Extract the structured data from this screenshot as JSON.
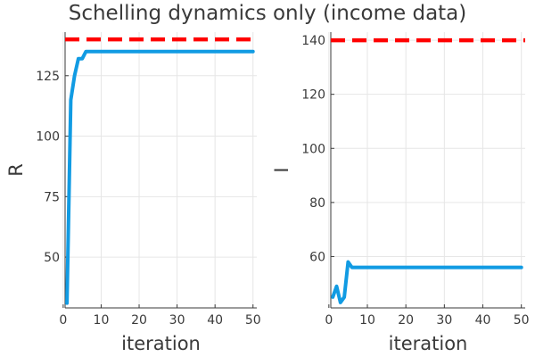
{
  "figure": {
    "title": "Schelling dynamics only (income data)"
  },
  "colors": {
    "series": "#119be3",
    "reference": "#ff0000",
    "axis": "#3a3a3a",
    "grid": "#e6e6e6"
  },
  "chart_data": [
    {
      "type": "line",
      "xlabel": "iteration",
      "ylabel": "R",
      "xlim": [
        0.5,
        51
      ],
      "ylim": [
        29,
        143
      ],
      "xticks": [
        0,
        10,
        20,
        30,
        40,
        50
      ],
      "yticks": [
        50,
        75,
        100,
        125
      ],
      "grid": true,
      "legend": "none",
      "series": [
        {
          "x": [
            1,
            2,
            3,
            4,
            5,
            6,
            7,
            8,
            9,
            10,
            15,
            20,
            25,
            30,
            35,
            40,
            45,
            50
          ],
          "values": [
            31,
            115,
            125,
            132,
            132,
            135,
            135,
            135,
            135,
            135,
            135,
            135,
            135,
            135,
            135,
            135,
            135,
            135
          ]
        }
      ],
      "reference_line": {
        "y": 140,
        "style": "dashed"
      }
    },
    {
      "type": "line",
      "xlabel": "iteration",
      "ylabel": "I",
      "xlim": [
        0.5,
        51
      ],
      "ylim": [
        41,
        143
      ],
      "xticks": [
        0,
        10,
        20,
        30,
        40,
        50
      ],
      "yticks": [
        60,
        80,
        100,
        120,
        140
      ],
      "grid": true,
      "legend": "none",
      "series": [
        {
          "x": [
            1,
            2,
            3,
            4,
            5,
            6,
            7,
            8,
            10,
            15,
            20,
            25,
            30,
            35,
            40,
            45,
            50
          ],
          "values": [
            45,
            49,
            43,
            45,
            58,
            56,
            56,
            56,
            56,
            56,
            56,
            56,
            56,
            56,
            56,
            56,
            56
          ]
        }
      ],
      "reference_line": {
        "y": 140,
        "style": "dashed"
      }
    }
  ]
}
